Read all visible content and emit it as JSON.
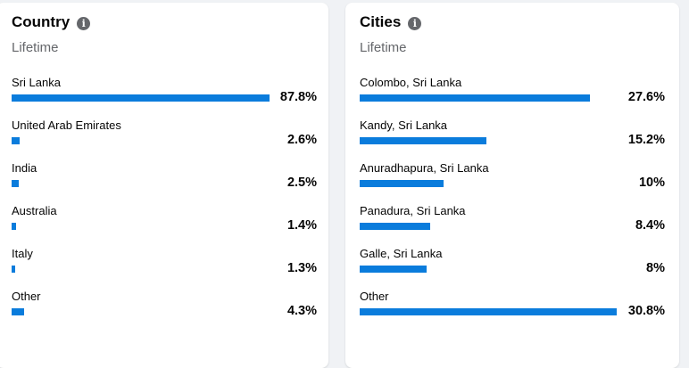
{
  "colors": {
    "bar": "#0a7cdc",
    "background": "#f0f2f5",
    "card": "#ffffff"
  },
  "country": {
    "title": "Country",
    "info_icon": "info-icon",
    "subtitle": "Lifetime",
    "max_percent": 87.8,
    "rows": [
      {
        "label": "Sri Lanka",
        "value": "87.8%",
        "percent": 87.8
      },
      {
        "label": "United Arab Emirates",
        "value": "2.6%",
        "percent": 2.6
      },
      {
        "label": "India",
        "value": "2.5%",
        "percent": 2.5
      },
      {
        "label": "Australia",
        "value": "1.4%",
        "percent": 1.4
      },
      {
        "label": "Italy",
        "value": "1.3%",
        "percent": 1.3
      },
      {
        "label": "Other",
        "value": "4.3%",
        "percent": 4.3
      }
    ]
  },
  "cities": {
    "title": "Cities",
    "info_icon": "info-icon",
    "subtitle": "Lifetime",
    "max_percent": 30.8,
    "rows": [
      {
        "label": "Colombo, Sri Lanka",
        "value": "27.6%",
        "percent": 27.6
      },
      {
        "label": "Kandy, Sri Lanka",
        "value": "15.2%",
        "percent": 15.2
      },
      {
        "label": "Anuradhapura, Sri Lanka",
        "value": "10%",
        "percent": 10
      },
      {
        "label": "Panadura, Sri Lanka",
        "value": "8.4%",
        "percent": 8.4
      },
      {
        "label": "Galle, Sri Lanka",
        "value": "8%",
        "percent": 8
      },
      {
        "label": "Other",
        "value": "30.8%",
        "percent": 30.8
      }
    ]
  }
}
